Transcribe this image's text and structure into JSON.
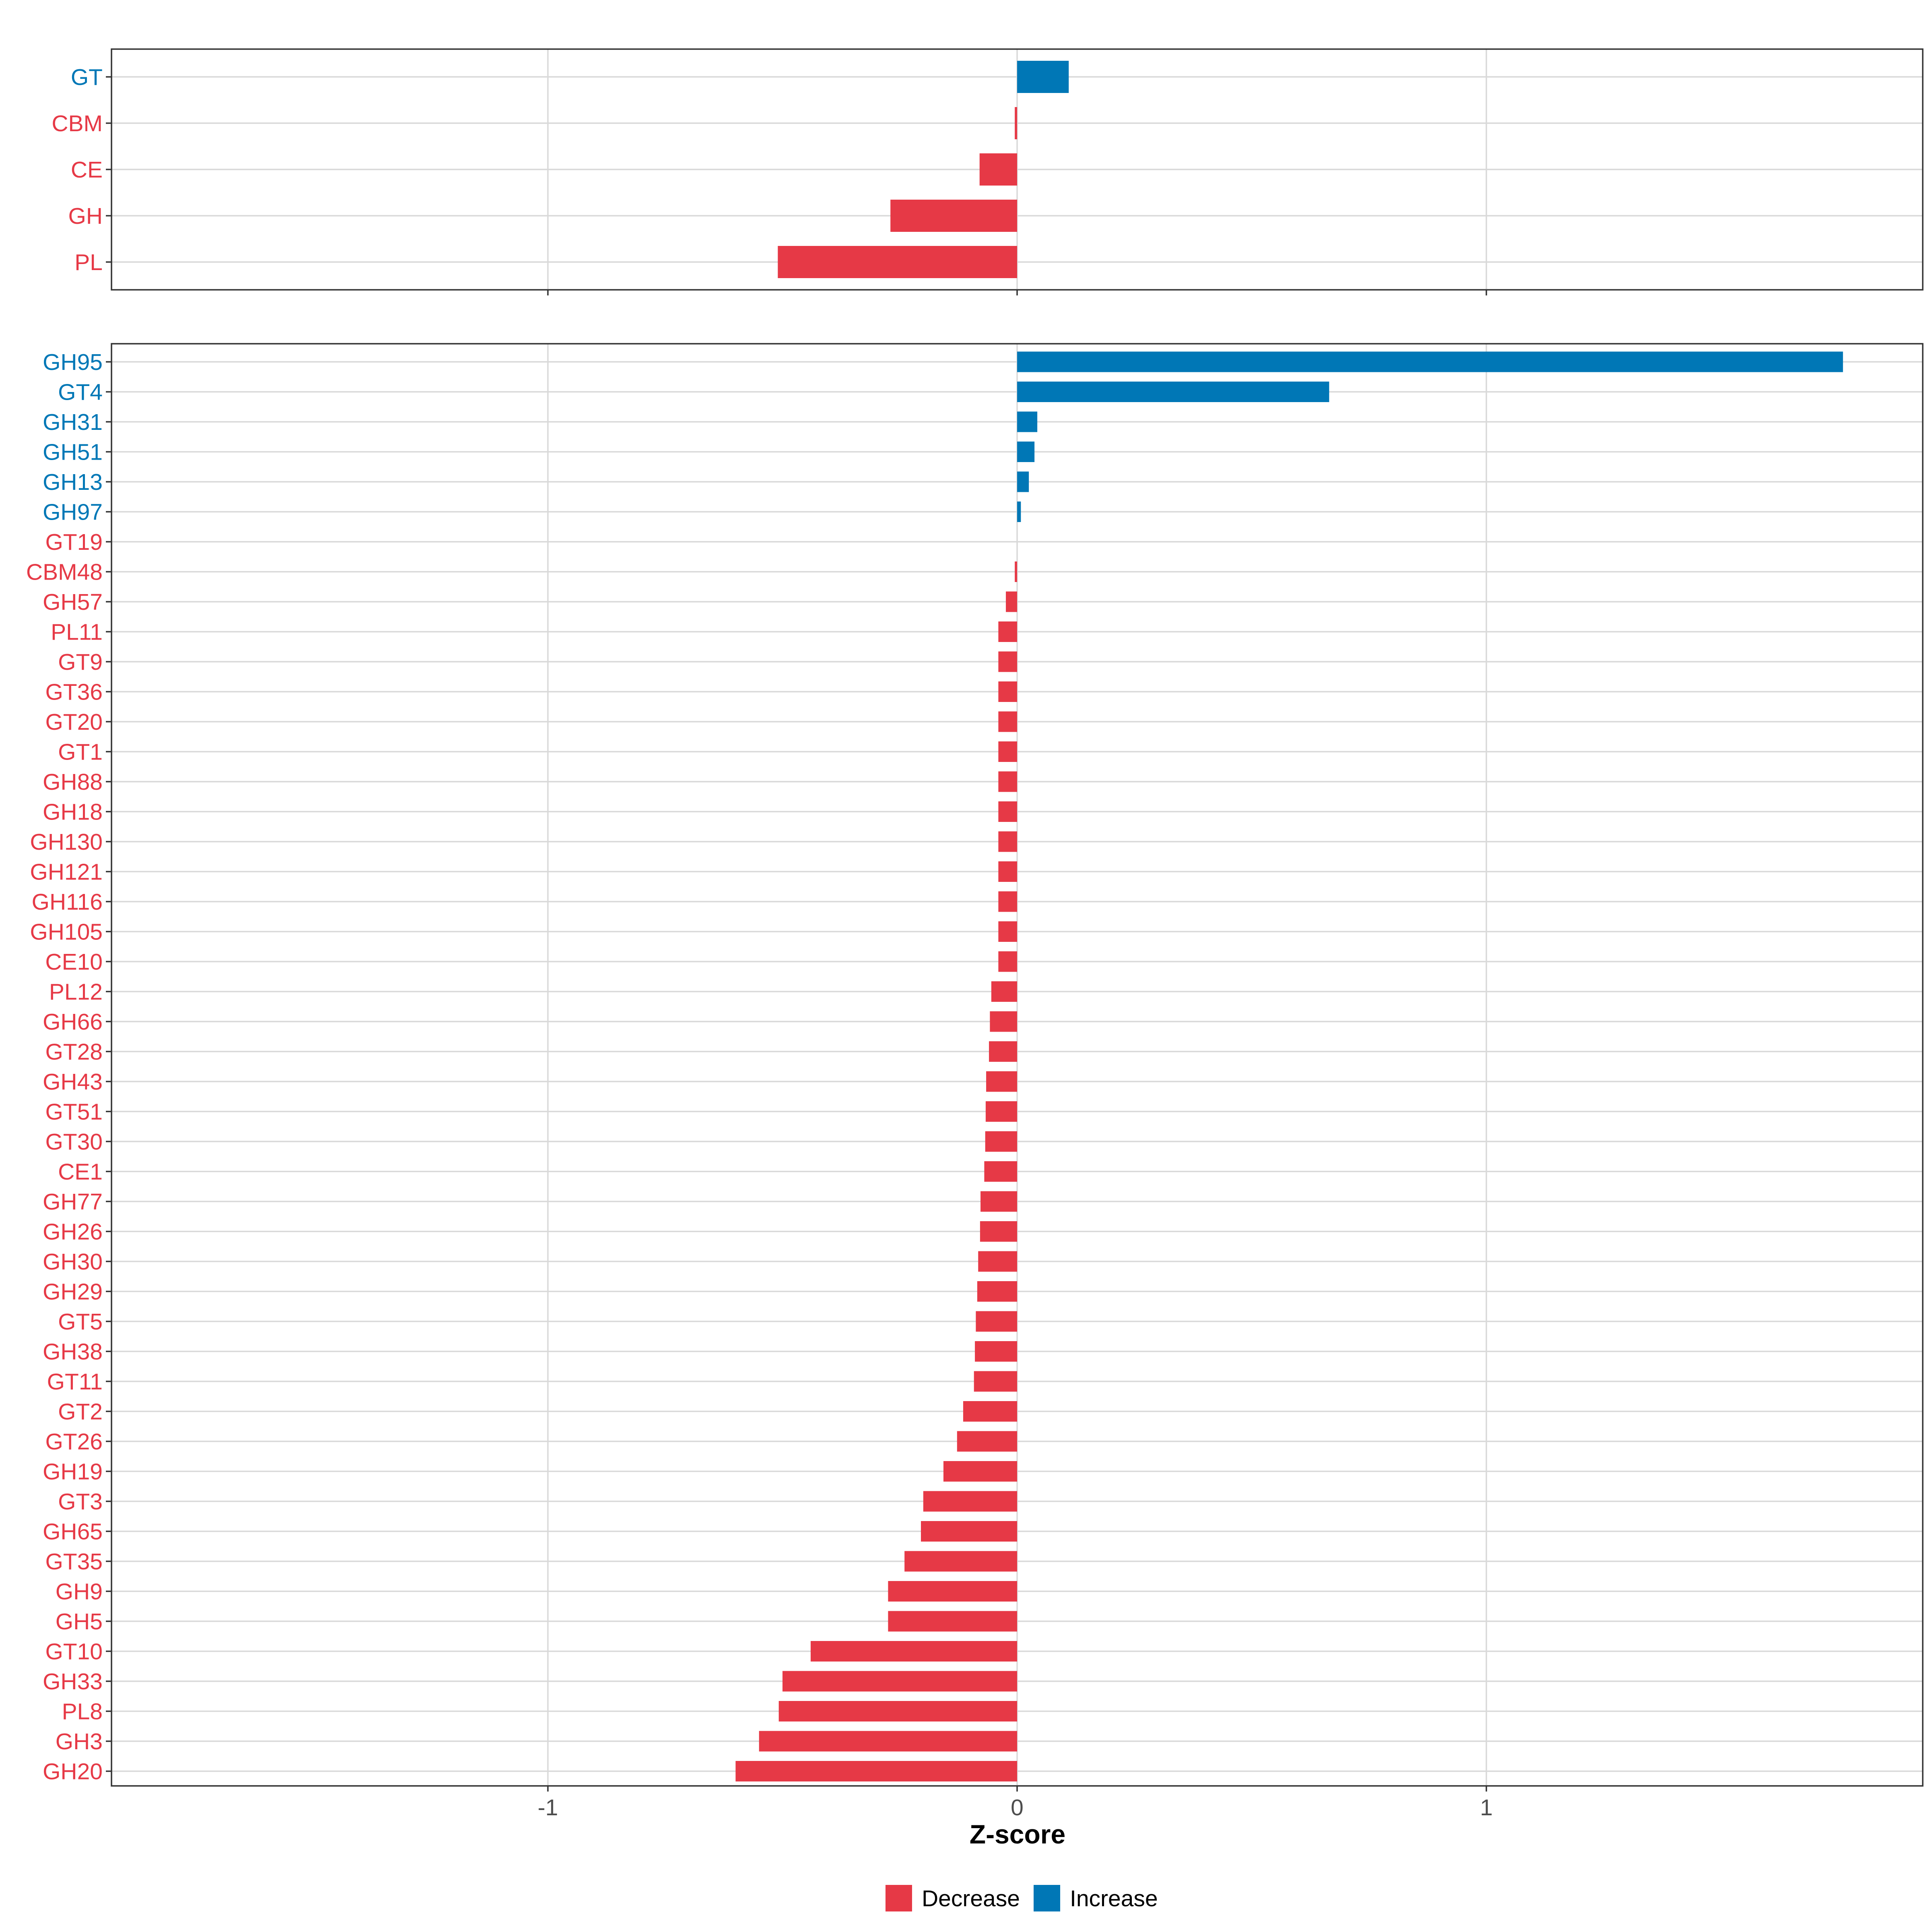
{
  "colors": {
    "decrease": "#E63946",
    "increase": "#0077B6",
    "grid": "#d9d9d9",
    "panel_border": "#333333",
    "tick_text": "#4d4d4d"
  },
  "chart_data": [
    {
      "type": "bar",
      "orientation": "horizontal",
      "panel": "top",
      "categories": [
        "GT",
        "CBM",
        "CE",
        "GH",
        "PL"
      ],
      "values": [
        0.11,
        -0.005,
        -0.08,
        -0.27,
        -0.51
      ],
      "directions": [
        "Increase",
        "Decrease",
        "Decrease",
        "Decrease",
        "Decrease"
      ],
      "xlim": [
        -1.93,
        1.93
      ],
      "xticks": [
        -1,
        0,
        1
      ],
      "xtick_labels": [
        "-1",
        "0",
        "1"
      ],
      "grid": true
    },
    {
      "type": "bar",
      "orientation": "horizontal",
      "panel": "bottom",
      "categories": [
        "GH95",
        "GT4",
        "GH31",
        "GH51",
        "GH13",
        "GH97",
        "GT19",
        "CBM48",
        "GH57",
        "PL11",
        "GT9",
        "GT36",
        "GT20",
        "GT1",
        "GH88",
        "GH18",
        "GH130",
        "GH121",
        "GH116",
        "GH105",
        "CE10",
        "PL12",
        "GH66",
        "GT28",
        "GH43",
        "GT51",
        "GT30",
        "CE1",
        "GH77",
        "GH26",
        "GH30",
        "GH29",
        "GT5",
        "GH38",
        "GT11",
        "GT2",
        "GT26",
        "GH19",
        "GT3",
        "GH65",
        "GT35",
        "GH9",
        "GH5",
        "GT10",
        "GH33",
        "PL8",
        "GH3",
        "GH20"
      ],
      "values": [
        1.76,
        0.665,
        0.043,
        0.037,
        0.025,
        0.008,
        0.0,
        -0.005,
        -0.024,
        -0.04,
        -0.04,
        -0.04,
        -0.04,
        -0.04,
        -0.04,
        -0.04,
        -0.04,
        -0.04,
        -0.04,
        -0.04,
        -0.04,
        -0.055,
        -0.058,
        -0.06,
        -0.066,
        -0.067,
        -0.068,
        -0.07,
        -0.078,
        -0.079,
        -0.083,
        -0.085,
        -0.088,
        -0.09,
        -0.092,
        -0.115,
        -0.128,
        -0.157,
        -0.2,
        -0.205,
        -0.24,
        -0.275,
        -0.275,
        -0.44,
        -0.5,
        -0.508,
        -0.55,
        -0.6
      ],
      "directions": [
        "Increase",
        "Increase",
        "Increase",
        "Increase",
        "Increase",
        "Increase",
        "Decrease",
        "Decrease",
        "Decrease",
        "Decrease",
        "Decrease",
        "Decrease",
        "Decrease",
        "Decrease",
        "Decrease",
        "Decrease",
        "Decrease",
        "Decrease",
        "Decrease",
        "Decrease",
        "Decrease",
        "Decrease",
        "Decrease",
        "Decrease",
        "Decrease",
        "Decrease",
        "Decrease",
        "Decrease",
        "Decrease",
        "Decrease",
        "Decrease",
        "Decrease",
        "Decrease",
        "Decrease",
        "Decrease",
        "Decrease",
        "Decrease",
        "Decrease",
        "Decrease",
        "Decrease",
        "Decrease",
        "Decrease",
        "Decrease",
        "Decrease",
        "Decrease",
        "Decrease",
        "Decrease",
        "Decrease"
      ],
      "xlim": [
        -1.93,
        1.93
      ],
      "xticks": [
        -1,
        0,
        1
      ],
      "xtick_labels": [
        "-1",
        "0",
        "1"
      ],
      "xlabel": "Z-score",
      "grid": true
    }
  ],
  "legend": {
    "position": "bottom",
    "items": [
      {
        "label": "Decrease",
        "key": "decrease"
      },
      {
        "label": "Increase",
        "key": "increase"
      }
    ]
  }
}
